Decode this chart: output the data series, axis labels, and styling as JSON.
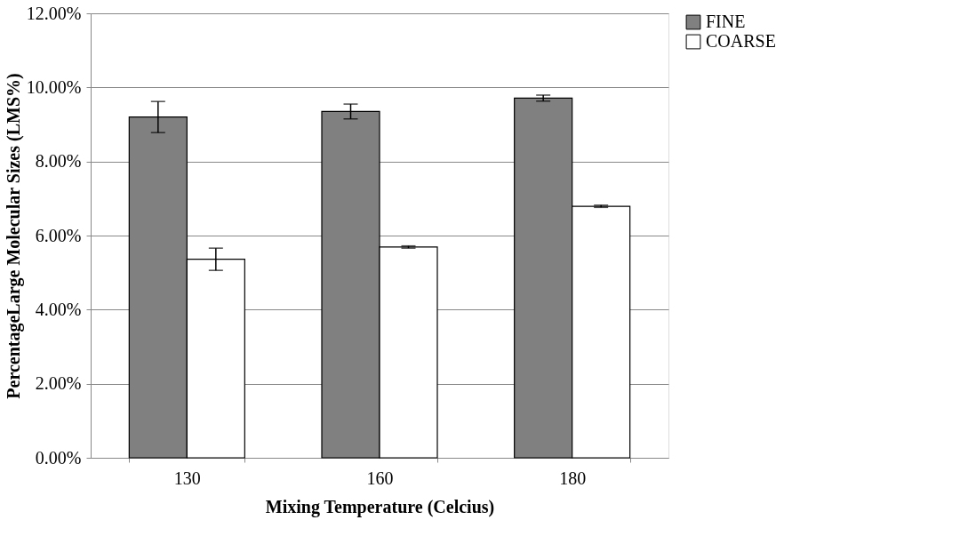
{
  "chart_data": {
    "type": "bar",
    "xlabel": "Mixing Temperature (Celcius)",
    "ylabel": "PercentageLarge Molecular Sizes (LMS%)",
    "categories": [
      "130",
      "160",
      "180"
    ],
    "series": [
      {
        "name": "FINE",
        "color": "#808080",
        "values": [
          9.2,
          9.35,
          9.71
        ],
        "errors": [
          0.42,
          0.2,
          0.08
        ]
      },
      {
        "name": "COARSE",
        "color": "#ffffff",
        "values": [
          5.36,
          5.69,
          6.79
        ],
        "errors": [
          0.3,
          0.03,
          0.03
        ]
      }
    ],
    "ylim": [
      0,
      12
    ],
    "yticks": [
      {
        "value": 0,
        "label": "0.00%"
      },
      {
        "value": 2,
        "label": "2.00%"
      },
      {
        "value": 4,
        "label": "4.00%"
      },
      {
        "value": 6,
        "label": "6.00%"
      },
      {
        "value": 8,
        "label": "8.00%"
      },
      {
        "value": 10,
        "label": "10.00%"
      },
      {
        "value": 12,
        "label": "12.00%"
      }
    ],
    "grid": "y",
    "legend": "right"
  }
}
